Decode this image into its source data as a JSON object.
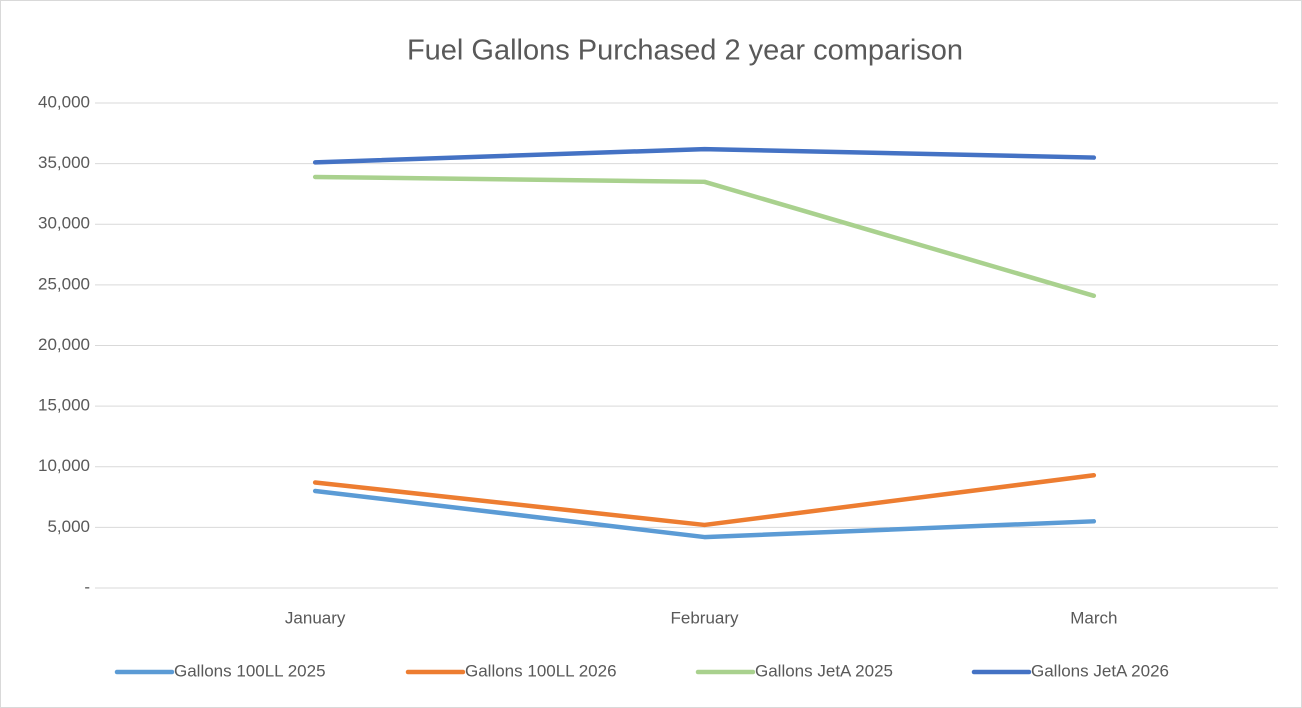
{
  "chart_data": {
    "type": "line",
    "title": "Fuel Gallons Purchased 2 year comparison",
    "categories": [
      "January",
      "February",
      "March"
    ],
    "series": [
      {
        "name": "Gallons 100LL 2025",
        "color": "#5b9bd5",
        "values": [
          8000,
          4200,
          5500
        ]
      },
      {
        "name": "Gallons 100LL 2026",
        "color": "#ed7d31",
        "values": [
          8700,
          5200,
          9300
        ]
      },
      {
        "name": "Gallons JetA 2025",
        "color": "#a9d18e",
        "values": [
          33900,
          33500,
          24100
        ]
      },
      {
        "name": "Gallons JetA 2026",
        "color": "#4472c4",
        "values": [
          35100,
          36200,
          35500
        ]
      }
    ],
    "ylim": [
      0,
      40000
    ],
    "yticks": [
      {
        "value": 0,
        "label": "-"
      },
      {
        "value": 5000,
        "label": "5,000"
      },
      {
        "value": 10000,
        "label": "10,000"
      },
      {
        "value": 15000,
        "label": "15,000"
      },
      {
        "value": 20000,
        "label": "20,000"
      },
      {
        "value": 25000,
        "label": "25,000"
      },
      {
        "value": 30000,
        "label": "30,000"
      },
      {
        "value": 35000,
        "label": "35,000"
      },
      {
        "value": 40000,
        "label": "40,000"
      }
    ],
    "grid": true,
    "legend": "bottom"
  }
}
